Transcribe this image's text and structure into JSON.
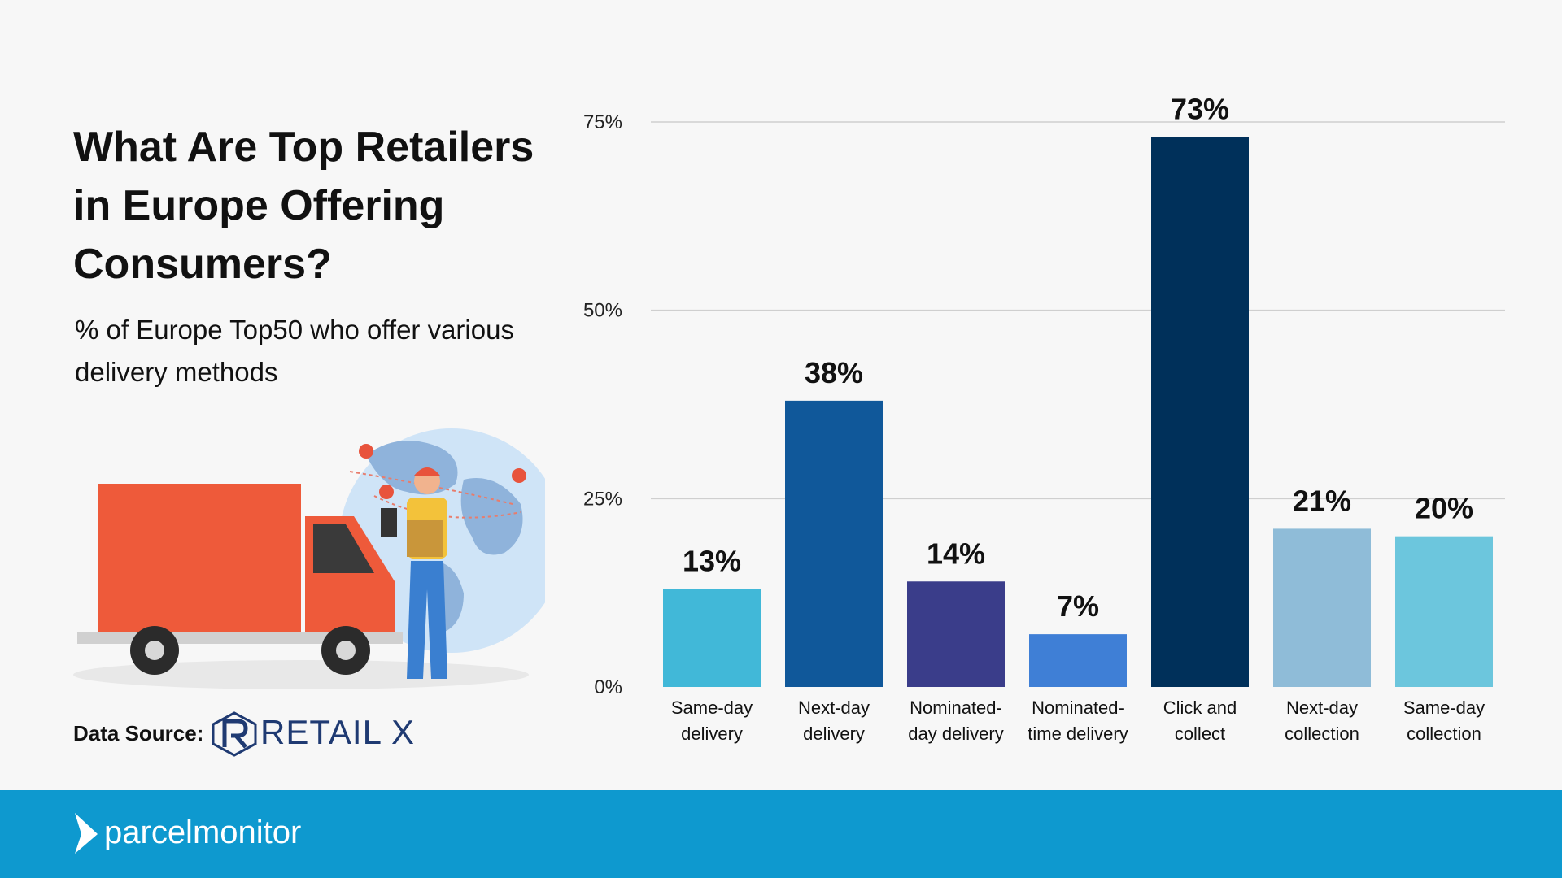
{
  "header": {
    "title": "What Are Top Retailers in Europe Offering Consumers?",
    "subtitle": "% of Europe Top50 who offer various delivery methods"
  },
  "source": {
    "label": "Data Source:",
    "brand": "RETAIL X"
  },
  "footer": {
    "brand": "parcelmonitor"
  },
  "colors": {
    "background": "#f7f7f7",
    "footer": "#0e99cf",
    "title": "#111111"
  },
  "chart_data": {
    "type": "bar",
    "title": "",
    "xlabel": "",
    "ylabel": "",
    "ylim": [
      0,
      75
    ],
    "yticks": [
      0,
      25,
      50,
      75
    ],
    "ytick_labels": [
      "0%",
      "25%",
      "50%",
      "75%"
    ],
    "grid": true,
    "categories": [
      [
        "Same-day",
        "delivery"
      ],
      [
        "Next-day",
        "delivery"
      ],
      [
        "Nominated-",
        "day delivery"
      ],
      [
        "Nominated-",
        "time delivery"
      ],
      [
        "Click and",
        "collect"
      ],
      [
        "Next-day",
        "collection"
      ],
      [
        "Same-day",
        "collection"
      ]
    ],
    "values": [
      13,
      38,
      14,
      7,
      73,
      21,
      20
    ],
    "value_labels": [
      "13%",
      "38%",
      "14%",
      "7%",
      "73%",
      "21%",
      "20%"
    ],
    "colors": [
      "#41b8d8",
      "#10589a",
      "#3a3d8a",
      "#3f7fd6",
      "#00305a",
      "#8fbcd8",
      "#6cc6dd"
    ]
  }
}
